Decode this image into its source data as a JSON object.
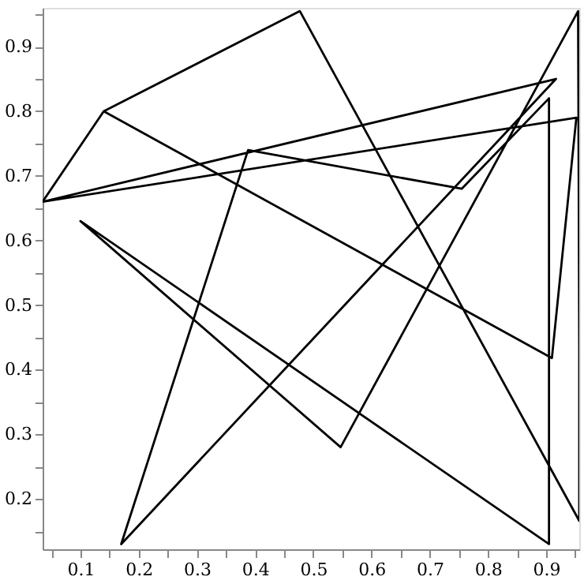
{
  "chart_data": {
    "type": "line",
    "series": [
      {
        "color": "#000000",
        "x": [
          0.14,
          0.035,
          0.917,
          0.17,
          0.388,
          0.755,
          0.905,
          0.905,
          0.1,
          0.547,
          0.955,
          0.957,
          0.957,
          0.477,
          0.14,
          0.91,
          0.952,
          0.035
        ],
        "values": [
          0.8,
          0.66,
          0.85,
          0.13,
          0.74,
          0.68,
          0.82,
          0.13,
          0.63,
          0.28,
          0.955,
          0.44,
          0.166,
          0.955,
          0.8,
          0.418,
          0.79,
          0.66
        ]
      }
    ],
    "xlim": [
      0.035,
      0.957
    ],
    "ylim": [
      0.122,
      0.96
    ],
    "xticks": [
      {
        "value": 0.05,
        "label": null
      },
      0.1,
      {
        "value": 0.15,
        "label": null
      },
      0.2,
      {
        "value": 0.25,
        "label": null
      },
      0.3,
      {
        "value": 0.35,
        "label": null
      },
      0.4,
      {
        "value": 0.45,
        "label": null
      },
      0.5,
      {
        "value": 0.55,
        "label": null
      },
      0.6,
      {
        "value": 0.65,
        "label": null
      },
      0.7,
      {
        "value": 0.75,
        "label": null
      },
      0.8,
      {
        "value": 0.85,
        "label": null
      },
      0.9,
      {
        "value": 0.95,
        "label": null
      }
    ],
    "yticks": [
      {
        "value": 0.15,
        "label": null
      },
      0.2,
      {
        "value": 0.25,
        "label": null
      },
      0.3,
      {
        "value": 0.35,
        "label": null
      },
      0.4,
      {
        "value": 0.45,
        "label": null
      },
      0.5,
      {
        "value": 0.55,
        "label": null
      },
      0.6,
      {
        "value": 0.65,
        "label": null
      },
      0.7,
      {
        "value": 0.75,
        "label": null
      },
      0.8,
      {
        "value": 0.85,
        "label": null
      },
      0.9,
      {
        "value": 0.95,
        "label": null
      }
    ],
    "grid": false,
    "marker": "none",
    "line_style": "solid"
  }
}
